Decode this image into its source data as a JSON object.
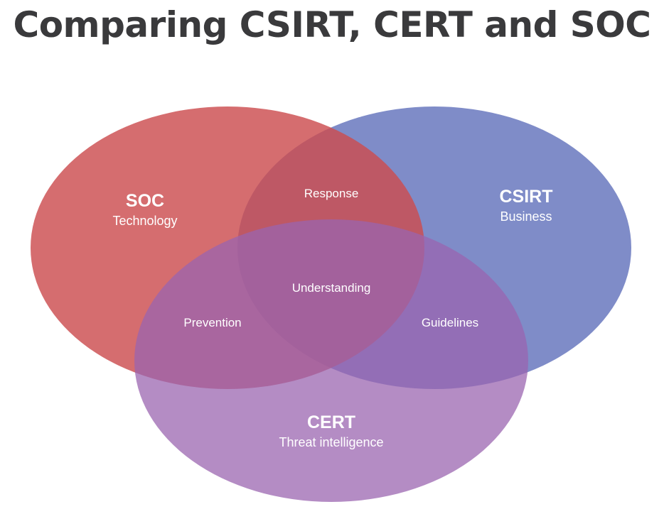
{
  "title": "Comparing CSIRT, CERT and SOC",
  "sets": {
    "soc": {
      "name": "SOC",
      "focus": "Technology",
      "color": "#cc4d4f"
    },
    "csirt": {
      "name": "CSIRT",
      "focus": "Business",
      "color": "#5b6bb8"
    },
    "cert": {
      "name": "CERT",
      "focus": "Threat intelligence",
      "color": "#9a64b0"
    }
  },
  "intersections": {
    "soc_csirt": "Response",
    "soc_cert": "Prevention",
    "csirt_cert": "Guidelines",
    "all": "Understanding"
  }
}
